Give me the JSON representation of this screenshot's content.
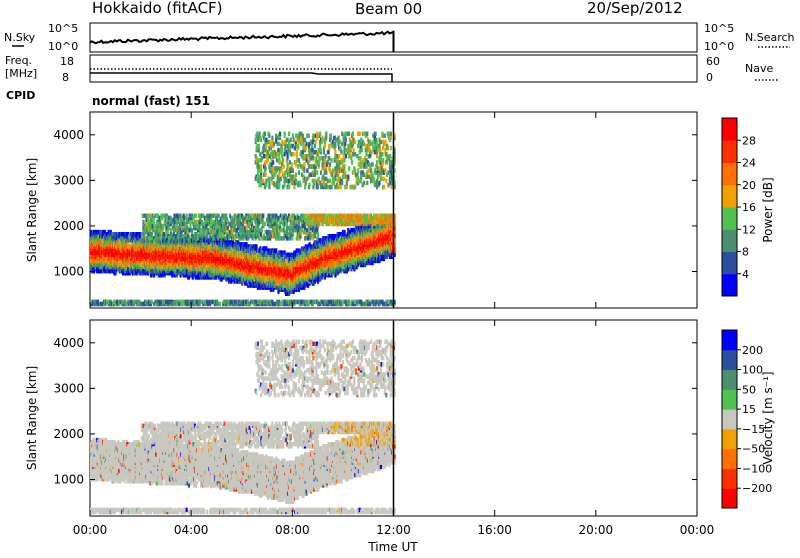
{
  "header": {
    "station": "Hokkaido (fitACF)",
    "beam": "Beam 00",
    "date": "20/Sep/2012"
  },
  "top_panels": {
    "nsky_label": "N.Sky",
    "nsky_tick_top": "10^5",
    "nsky_tick_bottom": "10^0",
    "nsearch_label": "N.Search",
    "nsearch_tick_top": "10^5",
    "nsearch_tick_bottom": "10^0",
    "freq_label_line1": "Freq.",
    "freq_label_line2": "[MHz]",
    "freq_tick_top": "18",
    "freq_tick_bottom": "8",
    "nave_label": "Nave",
    "nave_tick_top": "60",
    "nave_tick_bottom": "0",
    "cpid_label": "CPID",
    "cpid_text": "normal (fast) 151"
  },
  "colors": {
    "power_scale": [
      "#0000ff",
      "#2b4fa0",
      "#4a9070",
      "#50c050",
      "#f0a000",
      "#ff7000",
      "#ff3000",
      "#ff0000"
    ],
    "velocity_scale": [
      "#ff0000",
      "#ff3000",
      "#ff7000",
      "#f0a000",
      "#c8c8c0",
      "#50c050",
      "#4a9070",
      "#2b4fa0",
      "#0000ff"
    ]
  },
  "chart_data": [
    {
      "type": "heatmap",
      "ylabel": "Slant Range [km]",
      "yticks": [
        "1000",
        "2000",
        "3000",
        "4000"
      ],
      "ylim": [
        200,
        4500
      ],
      "x_range_hours": [
        0,
        24
      ],
      "data_extent_hours": [
        0,
        12
      ],
      "colorbar": {
        "label": "Power [dB]",
        "ticks": [
          "4",
          "8",
          "12",
          "16",
          "20",
          "24",
          "28"
        ],
        "range": [
          0,
          31
        ]
      }
    },
    {
      "type": "heatmap",
      "ylabel": "Slant Range [km]",
      "yticks": [
        "1000",
        "2000",
        "3000",
        "4000"
      ],
      "ylim": [
        200,
        4500
      ],
      "x_range_hours": [
        0,
        24
      ],
      "data_extent_hours": [
        0,
        12
      ],
      "colorbar": {
        "label": "Velocity [m s⁻¹]",
        "ticks": [
          "200",
          "100",
          "50",
          "15",
          "−15",
          "−50",
          "−100",
          "−200"
        ]
      }
    }
  ],
  "xaxis": {
    "ticks": [
      "00:00",
      "04:00",
      "08:00",
      "12:00",
      "16:00",
      "20:00",
      "00:00"
    ],
    "label": "Time UT"
  }
}
